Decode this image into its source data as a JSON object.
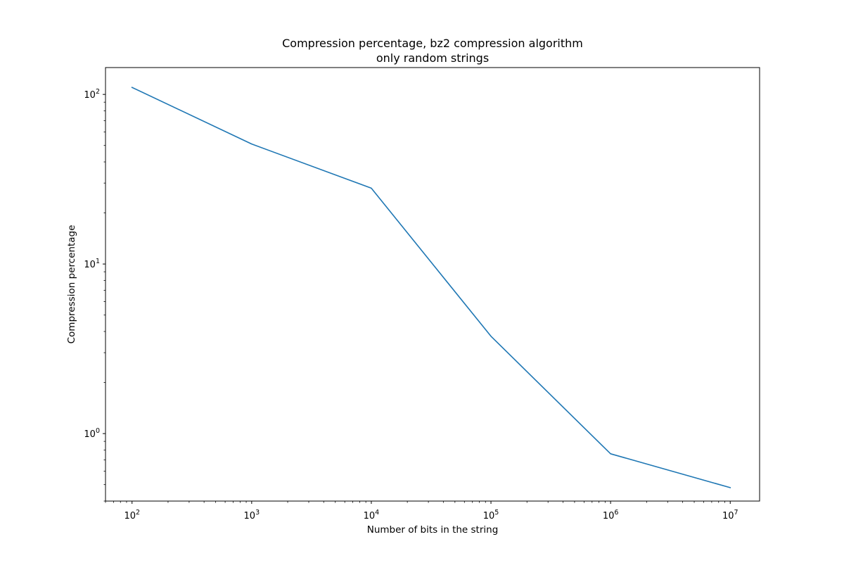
{
  "chart_data": {
    "type": "line",
    "title": "Compression percentage, bz2 compression algorithm",
    "subtitle": "only random strings",
    "xlabel": "Number of bits in the string",
    "ylabel": "Compression percentage",
    "x_scale": "log",
    "y_scale": "log",
    "xlim": [
      60,
      17600000
    ],
    "ylim": [
      0.4,
      144
    ],
    "x_ticks": [
      {
        "base": "10",
        "exp": "2",
        "value": 100
      },
      {
        "base": "10",
        "exp": "3",
        "value": 1000
      },
      {
        "base": "10",
        "exp": "4",
        "value": 10000
      },
      {
        "base": "10",
        "exp": "5",
        "value": 100000
      },
      {
        "base": "10",
        "exp": "6",
        "value": 1000000
      },
      {
        "base": "10",
        "exp": "7",
        "value": 10000000
      }
    ],
    "y_ticks": [
      {
        "base": "10",
        "exp": "0",
        "value": 1
      },
      {
        "base": "10",
        "exp": "1",
        "value": 10
      },
      {
        "base": "10",
        "exp": "2",
        "value": 100
      }
    ],
    "grid": false,
    "legend": "none",
    "line_color": "#1f77b4",
    "series": [
      {
        "x": [
          100,
          1000,
          10000,
          100000,
          1000000,
          10000000
        ],
        "y": [
          110,
          51,
          28,
          3.75,
          0.76,
          0.48
        ]
      }
    ]
  }
}
